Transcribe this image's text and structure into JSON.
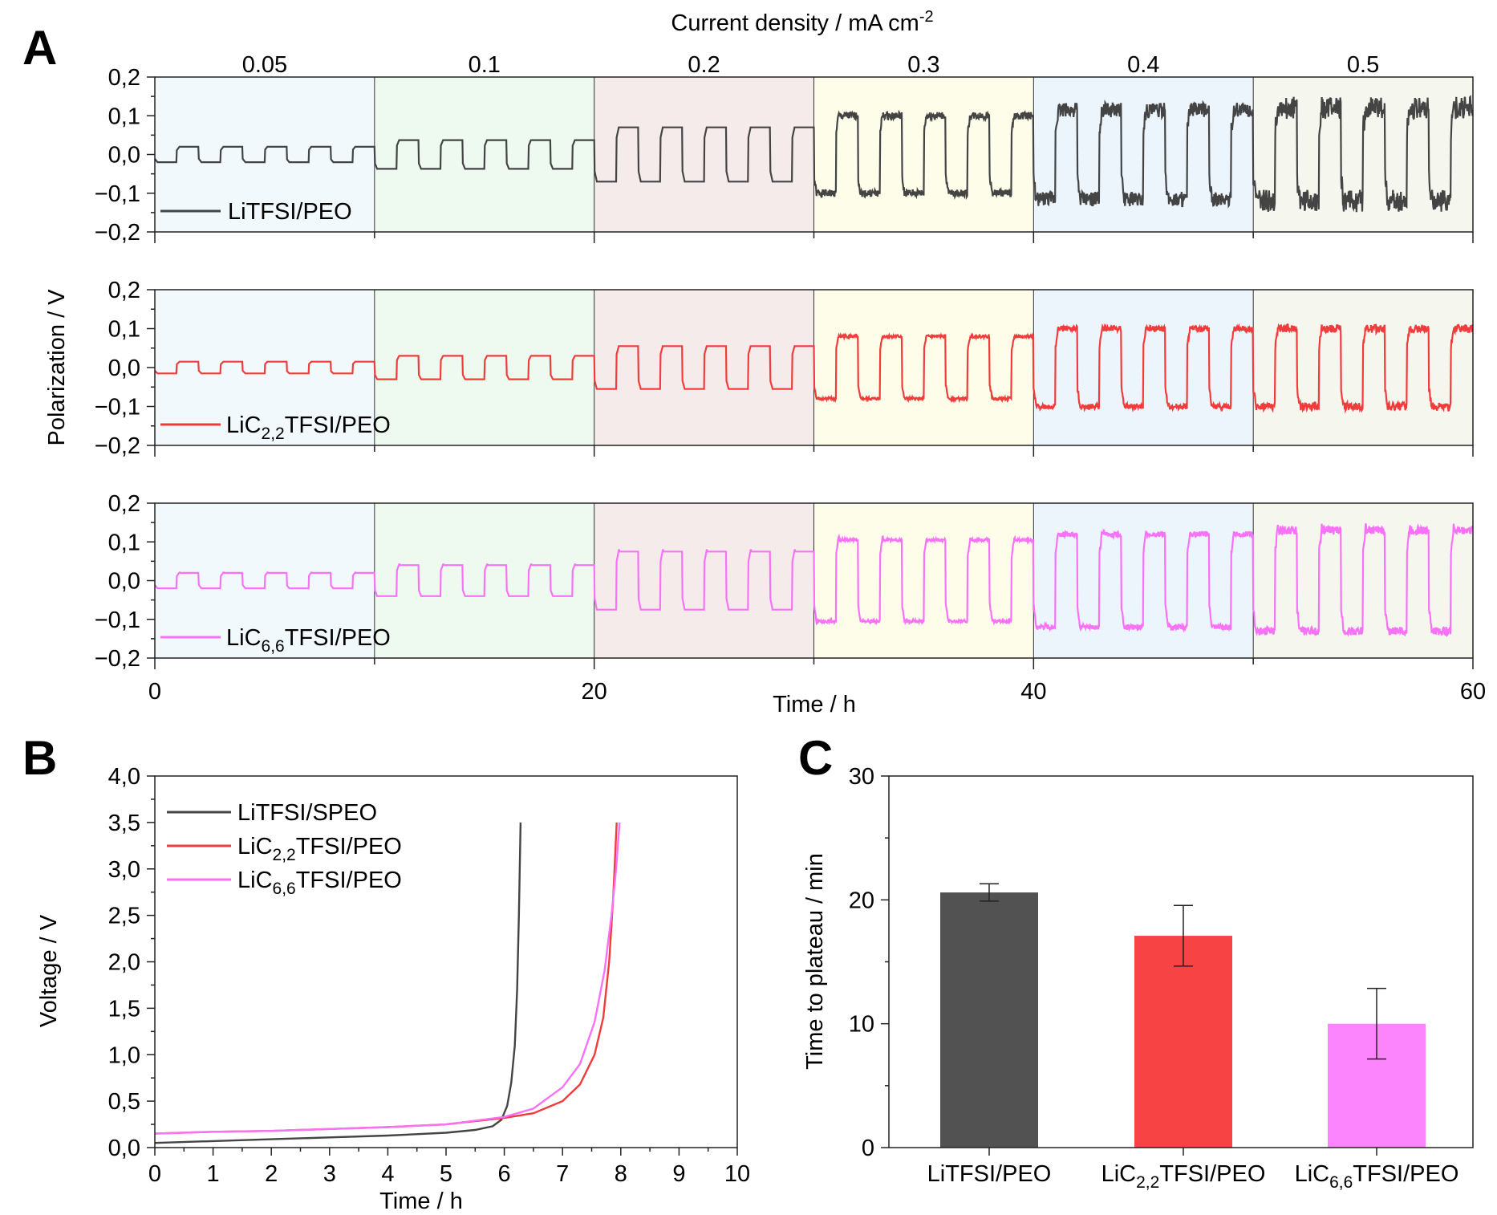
{
  "panel_labels": [
    "A",
    "B",
    "C"
  ],
  "chart_data": [
    {
      "type": "line",
      "panel": "A",
      "top_title": "Current density / mA cm",
      "top_title_sup": "-2",
      "segments": [
        "0.05",
        "0.1",
        "0.2",
        "0.3",
        "0.4",
        "0.5"
      ],
      "segment_colors": [
        "#f1f9fc",
        "#eef9ef",
        "#f5ebeb",
        "#fdfdea",
        "#edf5fc",
        "#f5f7ef"
      ],
      "ylabel": "Polarization / V",
      "xlabel": "Time / h",
      "xlim": [
        0,
        60
      ],
      "ylim": [
        -0.2,
        0.2
      ],
      "xticks": [
        "0",
        "20",
        "40",
        "60"
      ],
      "yticks": [
        "0,2",
        "0,1",
        "0,0",
        "−0,1",
        "−0,2"
      ],
      "cycle_period_h": 2,
      "series": [
        {
          "name": "LiTFSI/PEO",
          "color": "#444444",
          "plateau_amplitude_V": [
            0.02,
            0.037,
            0.07,
            0.1,
            0.115,
            0.12
          ]
        },
        {
          "name_main": "LiC",
          "name_sub": "2,2",
          "name_rest": "TFSI/PEO",
          "color": "#f03c3c",
          "plateau_amplitude_V": [
            0.015,
            0.03,
            0.055,
            0.08,
            0.1,
            0.1
          ]
        },
        {
          "name_main": "LiC",
          "name_sub": "6,6",
          "name_rest": "TFSI/PEO",
          "color": "#f772f7",
          "plateau_amplitude_V": [
            0.02,
            0.04,
            0.075,
            0.105,
            0.12,
            0.13
          ]
        }
      ]
    },
    {
      "type": "line",
      "panel": "B",
      "xlabel": "Time / h",
      "ylabel": "Voltage / V",
      "xlim": [
        0,
        10
      ],
      "ylim": [
        0,
        4
      ],
      "xticks": [
        "0",
        "1",
        "2",
        "3",
        "4",
        "5",
        "6",
        "7",
        "8",
        "9",
        "10"
      ],
      "yticks": [
        "0,0",
        "0,5",
        "1,0",
        "1,5",
        "2,0",
        "2,5",
        "3,0",
        "3,5",
        "4,0"
      ],
      "legend": "top-left",
      "series": [
        {
          "name": "LiTFSI/SPEO",
          "color": "#444444",
          "x": [
            0,
            1,
            2,
            3,
            4,
            5,
            5.5,
            5.8,
            5.95,
            6.05,
            6.12,
            6.18,
            6.22,
            6.25,
            6.28
          ],
          "y": [
            0.05,
            0.07,
            0.09,
            0.11,
            0.13,
            0.16,
            0.19,
            0.23,
            0.3,
            0.45,
            0.7,
            1.1,
            1.7,
            2.5,
            3.5
          ]
        },
        {
          "name_main": "LiC",
          "name_sub": "2,2",
          "name_rest": "TFSI/PEO",
          "color": "#f03c3c",
          "x": [
            0,
            1,
            2,
            3,
            4,
            5,
            6,
            6.5,
            7,
            7.3,
            7.55,
            7.7,
            7.8,
            7.87,
            7.93
          ],
          "y": [
            0.15,
            0.17,
            0.18,
            0.2,
            0.22,
            0.25,
            0.32,
            0.37,
            0.5,
            0.68,
            1.0,
            1.4,
            2.0,
            2.7,
            3.5
          ]
        },
        {
          "name_main": "LiC",
          "name_sub": "6,6",
          "name_rest": "TFSI/PEO",
          "color": "#f772f7",
          "x": [
            0,
            1,
            2,
            3,
            4,
            5,
            6,
            6.5,
            7,
            7.3,
            7.55,
            7.72,
            7.84,
            7.92,
            7.98
          ],
          "y": [
            0.15,
            0.17,
            0.18,
            0.2,
            0.22,
            0.25,
            0.33,
            0.42,
            0.65,
            0.9,
            1.35,
            1.9,
            2.5,
            3.0,
            3.5
          ]
        }
      ]
    },
    {
      "type": "bar",
      "panel": "C",
      "ylabel": "Time to plateau / min",
      "ylim": [
        0,
        30
      ],
      "yticks": [
        "0",
        "10",
        "20",
        "30"
      ],
      "categories": [
        {
          "main": "LiTFSI/PEO",
          "sub": "",
          "rest": ""
        },
        {
          "main": "LiC",
          "sub": "2,2",
          "rest": "TFSI/PEO"
        },
        {
          "main": "LiC",
          "sub": "6,6",
          "rest": "TFSI/PEO"
        }
      ],
      "values": [
        20.6,
        17.1,
        10.0
      ],
      "errors": [
        0.7,
        2.45,
        2.85
      ],
      "colors": [
        "#525252",
        "#f74343",
        "#fc84fc"
      ]
    }
  ]
}
